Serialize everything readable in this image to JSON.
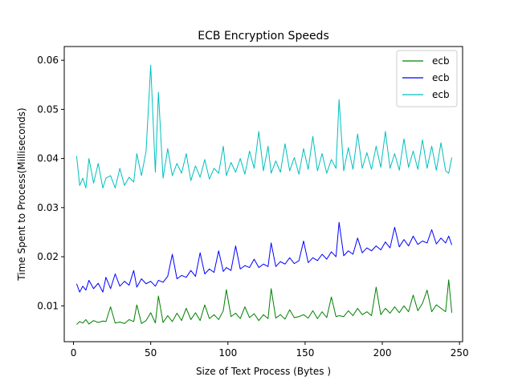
{
  "chart_data": {
    "type": "line",
    "title": "ECB Encryption Speeds",
    "xlabel": "Size of Text Process (Bytes )",
    "ylabel": "Time Spent to Process(Milliseconds)",
    "xlim": [
      -6,
      252
    ],
    "ylim": [
      0.0027,
      0.0628
    ],
    "xticks": [
      0,
      50,
      100,
      150,
      200,
      250
    ],
    "yticks": [
      0.01,
      0.02,
      0.03,
      0.04,
      0.05,
      0.06
    ],
    "xtick_labels": [
      "0",
      "50",
      "100",
      "150",
      "200",
      "250"
    ],
    "ytick_labels": [
      "0.01",
      "0.02",
      "0.03",
      "0.04",
      "0.05",
      "0.06"
    ],
    "grid": false,
    "legend_position": "top-right",
    "series": [
      {
        "name": "ecb",
        "color": "#008000",
        "x": [
          2,
          4,
          6,
          8,
          10,
          13,
          16,
          19,
          21,
          24,
          27,
          30,
          33,
          36,
          39,
          41,
          44,
          47,
          50,
          53,
          55,
          58,
          61,
          64,
          67,
          70,
          73,
          76,
          79,
          82,
          85,
          88,
          91,
          94,
          97,
          99,
          102,
          105,
          108,
          111,
          114,
          117,
          120,
          123,
          126,
          128,
          131,
          134,
          137,
          140,
          143,
          146,
          149,
          152,
          155,
          158,
          161,
          164,
          167,
          170,
          172,
          175,
          178,
          181,
          184,
          187,
          190,
          193,
          196,
          199,
          202,
          205,
          208,
          211,
          214,
          217,
          220,
          223,
          226,
          229,
          232,
          235,
          238,
          241,
          243,
          245
        ],
        "y": [
          0.0062,
          0.0068,
          0.0065,
          0.0072,
          0.0063,
          0.007,
          0.0066,
          0.0069,
          0.0068,
          0.0098,
          0.0065,
          0.0067,
          0.0064,
          0.0072,
          0.0068,
          0.0102,
          0.0064,
          0.007,
          0.0086,
          0.0065,
          0.012,
          0.0066,
          0.008,
          0.0068,
          0.0085,
          0.007,
          0.0095,
          0.0072,
          0.0086,
          0.007,
          0.0102,
          0.0074,
          0.0082,
          0.0072,
          0.009,
          0.0133,
          0.0078,
          0.0085,
          0.0074,
          0.0098,
          0.0076,
          0.0084,
          0.007,
          0.0082,
          0.0074,
          0.0135,
          0.0075,
          0.0082,
          0.0073,
          0.0092,
          0.0076,
          0.0078,
          0.0082,
          0.0075,
          0.009,
          0.0074,
          0.0088,
          0.0076,
          0.0118,
          0.0078,
          0.008,
          0.0078,
          0.009,
          0.008,
          0.0095,
          0.0082,
          0.0088,
          0.008,
          0.0138,
          0.0082,
          0.0095,
          0.0085,
          0.0098,
          0.0086,
          0.01,
          0.0088,
          0.0122,
          0.009,
          0.0105,
          0.0132,
          0.0088,
          0.0102,
          0.0095,
          0.0088,
          0.0153,
          0.0086
        ]
      },
      {
        "name": "ecb",
        "color": "#0000ff",
        "x": [
          2,
          4,
          6,
          8,
          10,
          13,
          16,
          19,
          21,
          24,
          27,
          30,
          33,
          36,
          39,
          41,
          44,
          47,
          50,
          53,
          55,
          58,
          61,
          64,
          67,
          70,
          73,
          76,
          79,
          82,
          85,
          88,
          91,
          94,
          97,
          99,
          102,
          105,
          108,
          111,
          114,
          117,
          120,
          123,
          126,
          128,
          131,
          134,
          137,
          140,
          143,
          146,
          149,
          152,
          155,
          158,
          161,
          164,
          167,
          170,
          172,
          175,
          178,
          181,
          184,
          187,
          190,
          193,
          196,
          199,
          202,
          205,
          208,
          211,
          214,
          217,
          220,
          223,
          226,
          229,
          232,
          235,
          238,
          241,
          243,
          245
        ],
        "y": [
          0.0145,
          0.0128,
          0.014,
          0.0132,
          0.0152,
          0.0135,
          0.0146,
          0.0128,
          0.0158,
          0.0135,
          0.0165,
          0.014,
          0.015,
          0.0142,
          0.0172,
          0.0138,
          0.0155,
          0.0145,
          0.015,
          0.014,
          0.0152,
          0.0148,
          0.016,
          0.0205,
          0.0155,
          0.0162,
          0.0158,
          0.0172,
          0.016,
          0.0208,
          0.0165,
          0.0175,
          0.0168,
          0.0212,
          0.017,
          0.0178,
          0.0172,
          0.0222,
          0.0175,
          0.0182,
          0.0178,
          0.0195,
          0.0178,
          0.0185,
          0.018,
          0.0228,
          0.018,
          0.019,
          0.0185,
          0.0198,
          0.0186,
          0.0192,
          0.0232,
          0.0188,
          0.0198,
          0.0192,
          0.0205,
          0.0195,
          0.021,
          0.02,
          0.027,
          0.0202,
          0.0212,
          0.0205,
          0.0238,
          0.0208,
          0.0218,
          0.0212,
          0.0222,
          0.0214,
          0.023,
          0.0218,
          0.026,
          0.022,
          0.0235,
          0.0222,
          0.0242,
          0.0225,
          0.0232,
          0.0228,
          0.0255,
          0.0226,
          0.0238,
          0.0228,
          0.0242,
          0.0224
        ]
      },
      {
        "name": "ecb",
        "color": "#00bfbf",
        "x": [
          2,
          4,
          6,
          8,
          10,
          13,
          16,
          19,
          21,
          24,
          27,
          30,
          33,
          36,
          39,
          41,
          44,
          47,
          50,
          53,
          55,
          58,
          61,
          64,
          67,
          70,
          73,
          76,
          79,
          82,
          85,
          88,
          91,
          94,
          97,
          99,
          102,
          105,
          108,
          111,
          114,
          117,
          120,
          123,
          126,
          128,
          131,
          134,
          137,
          140,
          143,
          146,
          149,
          152,
          155,
          158,
          161,
          164,
          167,
          170,
          172,
          175,
          178,
          181,
          184,
          187,
          190,
          193,
          196,
          199,
          202,
          205,
          208,
          211,
          214,
          217,
          220,
          223,
          226,
          229,
          232,
          235,
          238,
          241,
          243,
          245
        ],
        "y": [
          0.0405,
          0.0345,
          0.036,
          0.034,
          0.04,
          0.035,
          0.039,
          0.034,
          0.036,
          0.0365,
          0.034,
          0.038,
          0.0345,
          0.0362,
          0.0352,
          0.041,
          0.0365,
          0.0415,
          0.059,
          0.0372,
          0.0535,
          0.036,
          0.042,
          0.0365,
          0.039,
          0.037,
          0.041,
          0.0355,
          0.0385,
          0.0362,
          0.0398,
          0.0358,
          0.038,
          0.037,
          0.0425,
          0.0365,
          0.0392,
          0.0372,
          0.04,
          0.0368,
          0.0415,
          0.038,
          0.0455,
          0.0375,
          0.0425,
          0.037,
          0.0395,
          0.0372,
          0.043,
          0.0375,
          0.0402,
          0.0368,
          0.042,
          0.0378,
          0.0445,
          0.0375,
          0.041,
          0.037,
          0.0398,
          0.038,
          0.052,
          0.0375,
          0.0422,
          0.0378,
          0.045,
          0.038,
          0.0412,
          0.0378,
          0.0425,
          0.0382,
          0.0455,
          0.038,
          0.041,
          0.0376,
          0.044,
          0.0382,
          0.0415,
          0.0378,
          0.0438,
          0.038,
          0.0425,
          0.0376,
          0.0432,
          0.0375,
          0.037,
          0.0402
        ]
      }
    ]
  }
}
